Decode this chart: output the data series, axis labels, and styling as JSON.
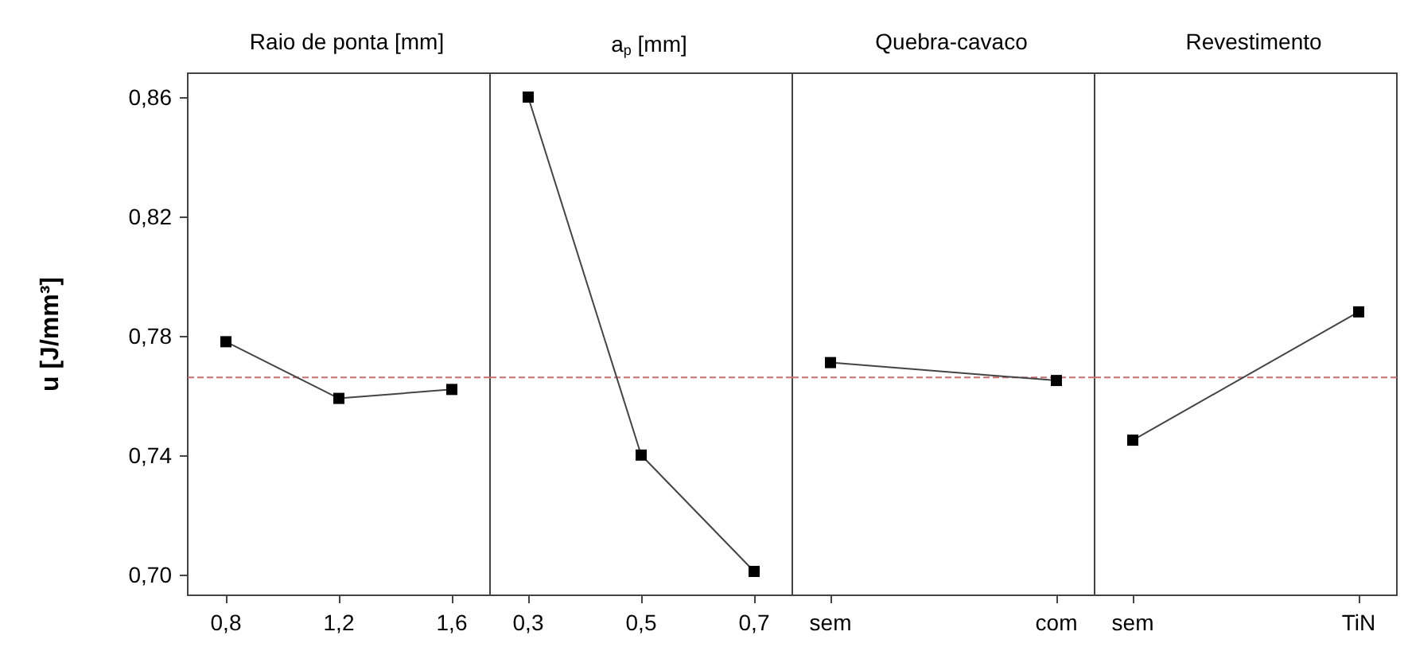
{
  "chart_data": [
    {
      "type": "line",
      "title": "Raio de ponta [mm]",
      "ylabel": "u [J/mm³]",
      "categories": [
        "0,8",
        "1,2",
        "1,6"
      ],
      "values": [
        0.778,
        0.759,
        0.762
      ],
      "color": "#000000",
      "marker": "square",
      "line_style": "solid",
      "ylim": [
        0.693,
        0.868
      ],
      "yticks": [
        {
          "value": 0.7,
          "label": "0,70"
        },
        {
          "value": 0.74,
          "label": "0,74"
        },
        {
          "value": 0.78,
          "label": "0,78"
        },
        {
          "value": 0.82,
          "label": "0,82"
        },
        {
          "value": 0.86,
          "label": "0,86"
        }
      ],
      "ref_lines": [
        {
          "axis": "y",
          "value": 0.766,
          "color": "#c87070",
          "line_style": "dashed"
        }
      ],
      "grid": false
    },
    {
      "type": "line",
      "title": "a$_{p}$ [mm]",
      "categories": [
        "0,3",
        "0,5",
        "0,7"
      ],
      "values": [
        0.86,
        0.74,
        0.701
      ],
      "color": "#000000",
      "marker": "square",
      "line_style": "solid",
      "ylim": [
        0.693,
        0.868
      ],
      "ref_lines": [
        {
          "axis": "y",
          "value": 0.766,
          "color": "#c87070",
          "line_style": "dashed"
        }
      ],
      "grid": false,
      "tick_labels": "x"
    },
    {
      "type": "line",
      "title": "Quebra-cavaco",
      "categories": [
        "sem",
        "com"
      ],
      "values": [
        0.771,
        0.765
      ],
      "color": "#000000",
      "marker": "square",
      "line_style": "solid",
      "ylim": [
        0.693,
        0.868
      ],
      "ref_lines": [
        {
          "axis": "y",
          "value": 0.766,
          "color": "#c87070",
          "line_style": "dashed"
        }
      ],
      "grid": false,
      "tick_labels": "x"
    },
    {
      "type": "line",
      "title": "Revestimento",
      "categories": [
        "sem",
        "TiN"
      ],
      "values": [
        0.745,
        0.788
      ],
      "color": "#000000",
      "marker": "square",
      "line_style": "solid",
      "ylim": [
        0.693,
        0.868
      ],
      "ref_lines": [
        {
          "axis": "y",
          "value": 0.766,
          "color": "#c87070",
          "line_style": "dashed"
        }
      ],
      "grid": false,
      "tick_labels": "x"
    }
  ]
}
